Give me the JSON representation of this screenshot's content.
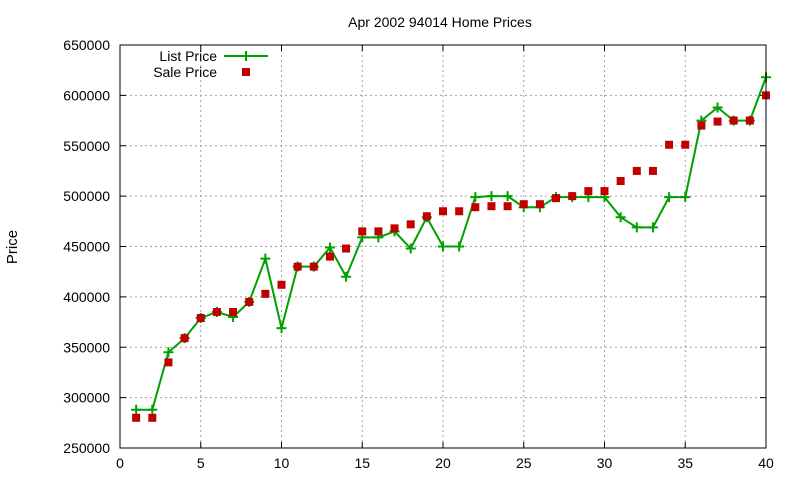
{
  "chart_data": {
    "type": "line",
    "title": "Apr 2002 94014 Home Prices",
    "xlabel": "",
    "ylabel": "Price",
    "xlim": [
      0,
      40
    ],
    "ylim": [
      250000,
      650000
    ],
    "xticks": [
      0,
      5,
      10,
      15,
      20,
      25,
      30,
      35,
      40
    ],
    "yticks": [
      250000,
      300000,
      350000,
      400000,
      450000,
      500000,
      550000,
      600000,
      650000
    ],
    "grid": true,
    "legend_position": "top-left",
    "series": [
      {
        "name": "List Price",
        "style": "line-plus",
        "color": "#00a000",
        "x": [
          1,
          2,
          3,
          4,
          5,
          6,
          7,
          8,
          9,
          10,
          11,
          12,
          13,
          14,
          15,
          16,
          17,
          18,
          19,
          20,
          21,
          22,
          23,
          24,
          25,
          26,
          27,
          28,
          29,
          30,
          31,
          32,
          33,
          34,
          35,
          36,
          37,
          38,
          39,
          40
        ],
        "y": [
          288000,
          288000,
          345000,
          359000,
          379000,
          385000,
          380000,
          395000,
          438000,
          369000,
          430000,
          430000,
          449000,
          420000,
          459000,
          459000,
          465000,
          448000,
          479000,
          450000,
          450000,
          499000,
          500000,
          500000,
          489000,
          489000,
          499000,
          499000,
          499000,
          499000,
          479000,
          469000,
          469000,
          499000,
          499000,
          575000,
          588000,
          575000,
          575000,
          618000
        ]
      },
      {
        "name": "Sale Price",
        "style": "squares",
        "color": "#c00000",
        "x": [
          1,
          2,
          3,
          4,
          5,
          6,
          7,
          8,
          9,
          10,
          11,
          12,
          13,
          14,
          15,
          16,
          17,
          18,
          19,
          20,
          21,
          22,
          23,
          24,
          25,
          26,
          27,
          28,
          29,
          30,
          31,
          32,
          33,
          34,
          35,
          36,
          37,
          38,
          39,
          40
        ],
        "y": [
          280000,
          280000,
          335000,
          359000,
          379000,
          385000,
          385000,
          395000,
          403000,
          412000,
          430000,
          430000,
          440000,
          448000,
          465000,
          465000,
          468000,
          472000,
          480000,
          485000,
          485000,
          489000,
          490000,
          490000,
          492000,
          492000,
          498000,
          500000,
          505000,
          505000,
          515000,
          525000,
          525000,
          551000,
          551000,
          570000,
          574000,
          575000,
          575000,
          600000
        ]
      }
    ]
  }
}
